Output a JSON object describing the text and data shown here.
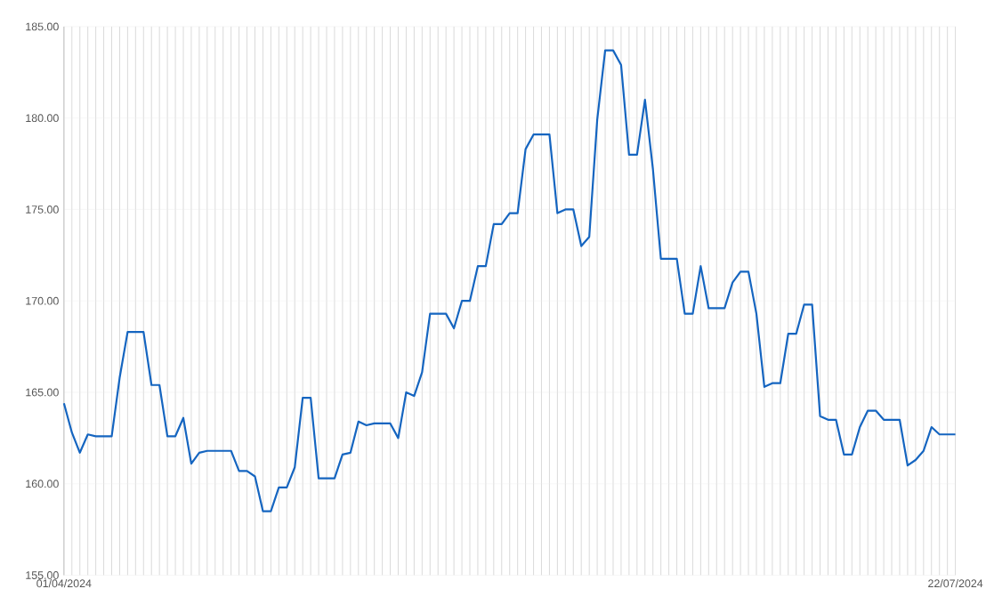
{
  "chart_data": {
    "type": "line",
    "x": [
      "2024-04-01",
      "2024-04-02",
      "2024-04-03",
      "2024-04-04",
      "2024-04-05",
      "2024-04-06",
      "2024-04-07",
      "2024-04-08",
      "2024-04-09",
      "2024-04-10",
      "2024-04-11",
      "2024-04-12",
      "2024-04-13",
      "2024-04-14",
      "2024-04-15",
      "2024-04-16",
      "2024-04-17",
      "2024-04-18",
      "2024-04-19",
      "2024-04-20",
      "2024-04-21",
      "2024-04-22",
      "2024-04-23",
      "2024-04-24",
      "2024-04-25",
      "2024-04-26",
      "2024-04-27",
      "2024-04-28",
      "2024-04-29",
      "2024-04-30",
      "2024-05-01",
      "2024-05-02",
      "2024-05-03",
      "2024-05-04",
      "2024-05-05",
      "2024-05-06",
      "2024-05-07",
      "2024-05-08",
      "2024-05-09",
      "2024-05-10",
      "2024-05-11",
      "2024-05-12",
      "2024-05-13",
      "2024-05-14",
      "2024-05-15",
      "2024-05-16",
      "2024-05-17",
      "2024-05-18",
      "2024-05-19",
      "2024-05-20",
      "2024-05-21",
      "2024-05-22",
      "2024-05-23",
      "2024-05-24",
      "2024-05-25",
      "2024-05-26",
      "2024-05-27",
      "2024-05-28",
      "2024-05-29",
      "2024-05-30",
      "2024-05-31",
      "2024-06-01",
      "2024-06-02",
      "2024-06-03",
      "2024-06-04",
      "2024-06-05",
      "2024-06-06",
      "2024-06-07",
      "2024-06-08",
      "2024-06-09",
      "2024-06-10",
      "2024-06-11",
      "2024-06-12",
      "2024-06-13",
      "2024-06-14",
      "2024-06-15",
      "2024-06-16",
      "2024-06-17",
      "2024-06-18",
      "2024-06-19",
      "2024-06-20",
      "2024-06-21",
      "2024-06-22",
      "2024-06-23",
      "2024-06-24",
      "2024-06-25",
      "2024-06-26",
      "2024-06-27",
      "2024-06-28",
      "2024-06-29",
      "2024-06-30",
      "2024-07-01",
      "2024-07-02",
      "2024-07-03",
      "2024-07-04",
      "2024-07-05",
      "2024-07-06",
      "2024-07-07",
      "2024-07-08",
      "2024-07-09",
      "2024-07-10",
      "2024-07-11",
      "2024-07-12",
      "2024-07-13",
      "2024-07-14",
      "2024-07-15",
      "2024-07-16",
      "2024-07-17",
      "2024-07-18",
      "2024-07-19",
      "2024-07-20",
      "2024-07-21",
      "2024-07-22"
    ],
    "series": [
      {
        "color": "#1565c0",
        "values": [
          164.4,
          162.8,
          161.7,
          162.7,
          162.6,
          162.6,
          162.6,
          165.8,
          168.3,
          168.3,
          168.3,
          165.4,
          165.4,
          162.6,
          162.6,
          163.6,
          161.1,
          161.7,
          161.8,
          161.8,
          161.8,
          161.8,
          160.7,
          160.7,
          160.4,
          158.5,
          158.5,
          159.8,
          159.8,
          160.9,
          164.7,
          164.7,
          160.3,
          160.3,
          160.3,
          161.6,
          161.7,
          163.4,
          163.2,
          163.3,
          163.3,
          163.3,
          162.5,
          165.0,
          164.8,
          166.1,
          169.3,
          169.3,
          169.3,
          168.5,
          170.0,
          170.0,
          171.9,
          171.9,
          174.2,
          174.2,
          174.8,
          174.8,
          178.3,
          179.1,
          179.1,
          179.1,
          174.8,
          175.0,
          175.0,
          173.0,
          173.5,
          179.9,
          183.7,
          183.7,
          182.9,
          178.0,
          178.0,
          181.0,
          177.2,
          172.3,
          172.3,
          172.3,
          169.3,
          169.3,
          171.9,
          169.6,
          169.6,
          169.6,
          171.0,
          171.6,
          171.6,
          169.3,
          165.3,
          165.5,
          165.5,
          168.2,
          168.2,
          169.8,
          169.8,
          163.7,
          163.5,
          163.5,
          161.6,
          161.6,
          163.1,
          164.0,
          164.0,
          163.5,
          163.5,
          163.5,
          161.0,
          161.3,
          161.8,
          163.1,
          162.7,
          162.7,
          162.7
        ]
      }
    ],
    "xlim": [
      "2024-04-01",
      "2024-07-22"
    ],
    "xticks": [
      {
        "value": "2024-04-01",
        "label": "01/04/2024"
      },
      {
        "value": "2024-07-22",
        "label": "22/07/2024"
      }
    ],
    "ylim": [
      155,
      185
    ],
    "yticks": [
      {
        "value": 155,
        "label": "155.00"
      },
      {
        "value": 160,
        "label": "160.00"
      },
      {
        "value": 165,
        "label": "165.00"
      },
      {
        "value": 170,
        "label": "170.00"
      },
      {
        "value": 175,
        "label": "175.00"
      },
      {
        "value": 180,
        "label": "180.00"
      },
      {
        "value": 185,
        "label": "185.00"
      }
    ],
    "grid": true,
    "marker": "none",
    "line_style": "solid"
  }
}
